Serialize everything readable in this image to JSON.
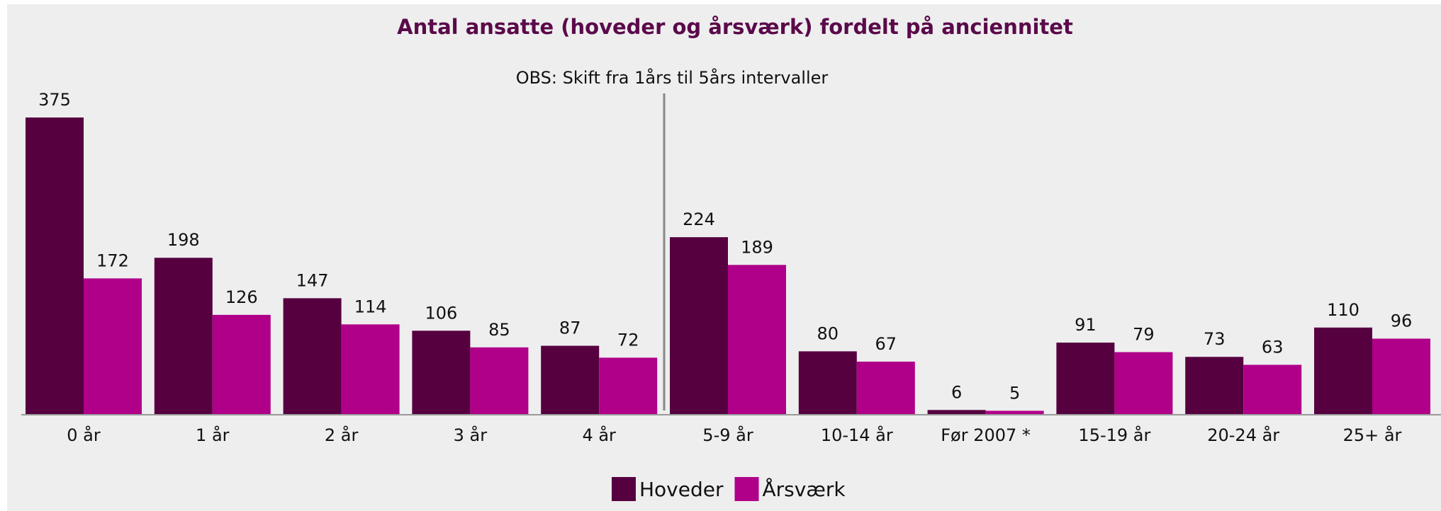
{
  "chart_data": {
    "type": "bar",
    "title": "Antal ansatte (hoveder og årsværk) fordelt på anciennitet",
    "annotation": "OBS: Skift fra 1års til 5års intervaller",
    "categories": [
      "0 år",
      "1 år",
      "2 år",
      "3 år",
      "4 år",
      "5-9 år",
      "10-14 år",
      "Før 2007 *",
      "15-19 år",
      "20-24 år",
      "25+ år"
    ],
    "series": [
      {
        "name": "Hoveder",
        "color": "#560040",
        "values": [
          375,
          198,
          147,
          106,
          87,
          224,
          80,
          6,
          91,
          73,
          110
        ]
      },
      {
        "name": "Årsværk",
        "color": "#b0008a",
        "values": [
          172,
          126,
          114,
          85,
          72,
          189,
          67,
          5,
          79,
          63,
          96
        ]
      }
    ],
    "ylim": [
      0,
      400
    ],
    "legend": "bottom"
  }
}
